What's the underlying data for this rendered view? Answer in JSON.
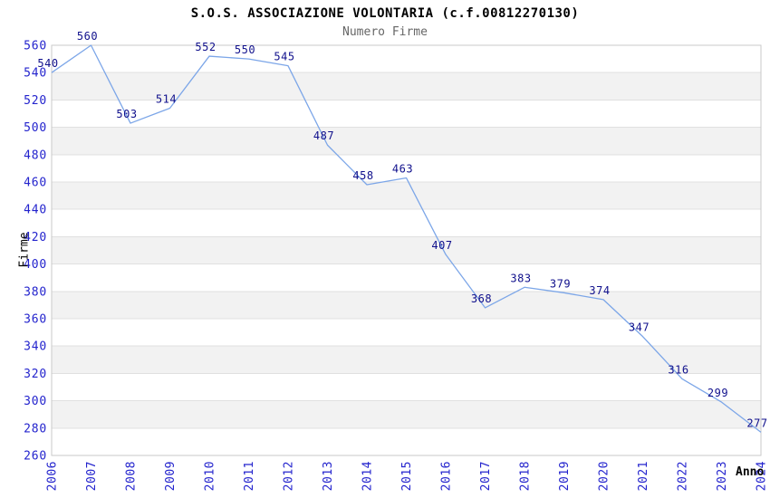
{
  "chart_data": {
    "type": "line",
    "title": "S.O.S. ASSOCIAZIONE VOLONTARIA (c.f.00812270130)",
    "subtitle": "Numero Firme",
    "xlabel": "Anno",
    "ylabel": "Firme",
    "categories": [
      "2006",
      "2007",
      "2008",
      "2009",
      "2010",
      "2011",
      "2012",
      "2013",
      "2014",
      "2015",
      "2016",
      "2017",
      "2018",
      "2019",
      "2020",
      "2021",
      "2022",
      "2023",
      "2024"
    ],
    "values": [
      540,
      560,
      503,
      514,
      552,
      550,
      545,
      487,
      458,
      463,
      407,
      368,
      383,
      379,
      374,
      347,
      316,
      299,
      277
    ],
    "ylim": [
      260,
      560
    ],
    "ytick_step": 20,
    "grid": true,
    "legend": "none",
    "colors": {
      "line": "#7CA6E8",
      "data_label": "#10108C",
      "tick_label": "#2323CD",
      "band": "#F2F2F2",
      "grid": "#E0E0E0",
      "border": "#C9C9C9",
      "title": "#000000",
      "subtitle": "#666666",
      "background": "#FFFFFF"
    }
  }
}
